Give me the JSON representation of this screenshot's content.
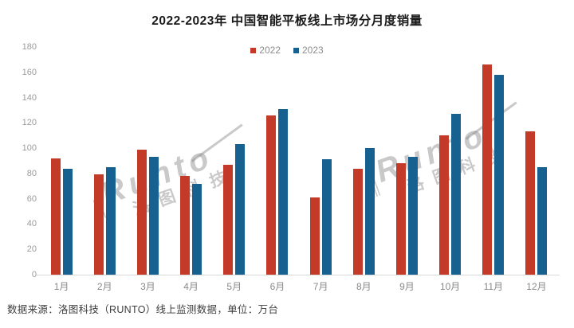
{
  "chart_data": {
    "type": "bar",
    "title": "2022-2023年 中国智能平板线上市场分月度销量",
    "categories": [
      "1月",
      "2月",
      "3月",
      "4月",
      "5月",
      "6月",
      "7月",
      "8月",
      "9月",
      "10月",
      "11月",
      "12月"
    ],
    "series": [
      {
        "name": "2022",
        "color": "#c43a28",
        "values": [
          92,
          79,
          99,
          78,
          87,
          126,
          61,
          84,
          88,
          110,
          166,
          113
        ]
      },
      {
        "name": "2023",
        "color": "#16618f",
        "values": [
          84,
          85,
          93,
          72,
          103,
          131,
          91,
          100,
          93,
          127,
          158,
          85
        ]
      }
    ],
    "ylim": [
      0,
      180
    ],
    "y_ticks": [
      0,
      20,
      40,
      60,
      80,
      100,
      120,
      140,
      160,
      180
    ],
    "grid": false,
    "legend_position": "top-center",
    "unit": "万台"
  },
  "footer": {
    "text": "数据来源：洛图科技（RUNTO）线上监测数据，单位：万台"
  },
  "watermark": {
    "brand": "Runto",
    "brand_cn": "洛图科技"
  }
}
